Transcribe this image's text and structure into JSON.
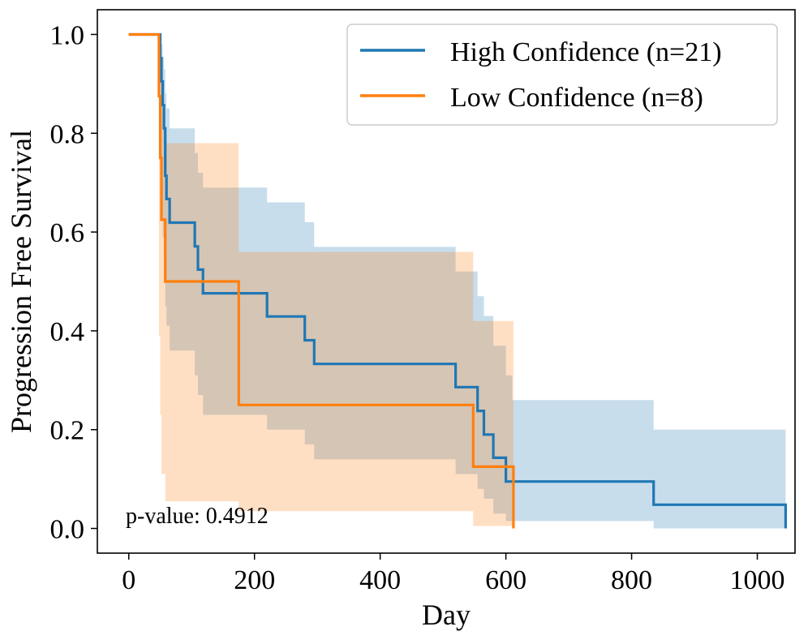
{
  "chart_data": {
    "type": "line",
    "subtype": "kaplan-meier-step",
    "title": "",
    "xlabel": "Day",
    "ylabel": "Progression Free Survival",
    "xlim": [
      -50,
      1060
    ],
    "ylim": [
      -0.05,
      1.05
    ],
    "xticks": [
      0,
      200,
      400,
      600,
      800,
      1000
    ],
    "yticks": [
      0.0,
      0.2,
      0.4,
      0.6,
      0.8,
      1.0
    ],
    "xtick_labels": [
      "0",
      "200",
      "400",
      "600",
      "800",
      "1000"
    ],
    "ytick_labels": [
      "0.0",
      "0.2",
      "0.4",
      "0.6",
      "0.8",
      "1.0"
    ],
    "grid": false,
    "legend_position": "top-right",
    "annotation": "p-value: 0.4912",
    "series": [
      {
        "name": "High Confidence (n=21)",
        "color": "#1f77b4",
        "x": [
          0,
          50,
          52,
          54,
          56,
          58,
          60,
          65,
          105,
          110,
          118,
          220,
          280,
          295,
          520,
          555,
          565,
          580,
          600,
          610,
          835,
          1045
        ],
        "y": [
          1.0,
          0.952,
          0.905,
          0.857,
          0.81,
          0.714,
          0.667,
          0.619,
          0.571,
          0.524,
          0.476,
          0.429,
          0.381,
          0.333,
          0.286,
          0.238,
          0.19,
          0.143,
          0.095,
          0.095,
          0.048,
          0.0
        ],
        "ci_upper": [
          1.0,
          1.0,
          0.98,
          0.955,
          0.93,
          0.88,
          0.85,
          0.81,
          0.76,
          0.72,
          0.69,
          0.66,
          0.62,
          0.57,
          0.52,
          0.47,
          0.43,
          0.37,
          0.31,
          0.26,
          0.2,
          0.2
        ],
        "ci_lower": [
          1.0,
          0.7,
          0.64,
          0.59,
          0.55,
          0.45,
          0.41,
          0.36,
          0.31,
          0.27,
          0.23,
          0.2,
          0.17,
          0.14,
          0.11,
          0.08,
          0.06,
          0.03,
          0.015,
          0.015,
          0.0,
          0.0
        ]
      },
      {
        "name": "Low Confidence (n=8)",
        "color": "#ff7f0e",
        "x": [
          0,
          48,
          50,
          52,
          58,
          175,
          548,
          612
        ],
        "y": [
          1.0,
          0.875,
          0.75,
          0.625,
          0.5,
          0.25,
          0.125,
          0.0
        ],
        "ci_upper": [
          1.0,
          0.98,
          0.93,
          0.85,
          0.78,
          0.56,
          0.42,
          0.42
        ],
        "ci_lower": [
          1.0,
          0.39,
          0.23,
          0.11,
          0.055,
          0.035,
          0.005,
          0.0
        ]
      }
    ]
  }
}
